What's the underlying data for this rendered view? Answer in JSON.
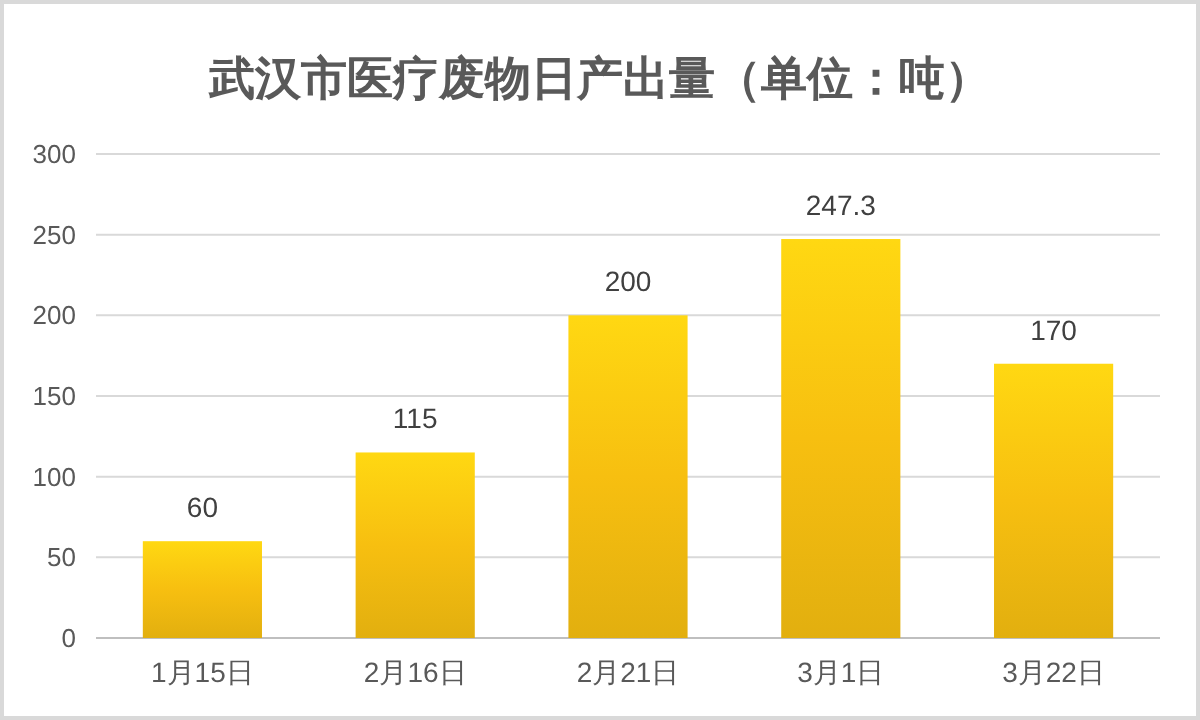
{
  "chart_data": {
    "type": "bar",
    "title": "武汉市医疗废物日产出量（单位：吨）",
    "categories": [
      "1月15日",
      "2月16日",
      "2月21日",
      "3月1日",
      "3月22日"
    ],
    "values": [
      60,
      115,
      200,
      247.3,
      170
    ],
    "color": "#f7bf10",
    "ylim": [
      0,
      300
    ],
    "yticks": [
      0,
      50,
      100,
      150,
      200,
      250,
      300
    ],
    "grid": "y",
    "data_labels": true
  }
}
